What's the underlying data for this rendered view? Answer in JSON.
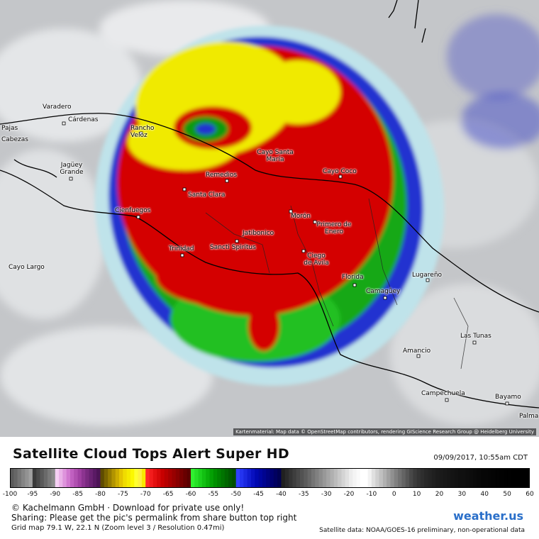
{
  "map": {
    "attribution": "Kartenmaterial: Map data © OpenStreetMap contributors, rendering GIScience Research Group @ Heidelberg University",
    "cities": [
      {
        "name": "Varadero",
        "id": "varadero"
      },
      {
        "name": "Cárdenas",
        "id": "cardenas"
      },
      {
        "name": "Rancho Veloz",
        "id": "rancho-veloz"
      },
      {
        "name": "Cayo Santa María",
        "id": "cayo-santa-maria"
      },
      {
        "name": "Remedios",
        "id": "remedios"
      },
      {
        "name": "Cayo Coco",
        "id": "cayo-coco"
      },
      {
        "name": "Santa Clara",
        "id": "santa-clara"
      },
      {
        "name": "Jagüey Grande",
        "id": "jaguey-grande"
      },
      {
        "name": "Cienfuegos",
        "id": "cienfuegos"
      },
      {
        "name": "Morón",
        "id": "moron"
      },
      {
        "name": "Primero de Enero",
        "id": "primero-de-enero"
      },
      {
        "name": "Jatibonico",
        "id": "jatibonico"
      },
      {
        "name": "Trinidad",
        "id": "trinidad"
      },
      {
        "name": "Sancti Spiritus",
        "id": "sancti-spiritus"
      },
      {
        "name": "Ciego de Avila",
        "id": "ciego-de-avila"
      },
      {
        "name": "Cayo Largo",
        "id": "cayo-largo"
      },
      {
        "name": "Florida",
        "id": "florida"
      },
      {
        "name": "Lugareño",
        "id": "lugareno"
      },
      {
        "name": "Camagüey",
        "id": "camaguey"
      },
      {
        "name": "Las Tunas",
        "id": "las-tunas"
      },
      {
        "name": "Amancio",
        "id": "amancio"
      },
      {
        "name": "Bayamo",
        "id": "bayamo"
      },
      {
        "name": "Campechuela",
        "id": "campechuela"
      },
      {
        "name": "Palma",
        "id": "palma"
      },
      {
        "name": "Cabezas",
        "id": "cabezas"
      },
      {
        "name": "Pajas",
        "id": "pajas"
      }
    ]
  },
  "header": {
    "title": "Satellite Cloud Tops Alert Super HD",
    "datetime": "09/09/2017, 10:55am CDT"
  },
  "scale": {
    "ticks": [
      "-100",
      "-95",
      "-90",
      "-85",
      "-80",
      "-75",
      "-70",
      "-65",
      "-60",
      "-55",
      "-50",
      "-45",
      "-40",
      "-35",
      "-30",
      "-20",
      "-10",
      "0",
      "10",
      "20",
      "30",
      "40",
      "50",
      "60"
    ],
    "colors": {
      "gray_dark": "#1a1a1a",
      "pink": "#e88ce6",
      "gold": "#c8a000",
      "yellow": "#f0f000",
      "red": "#e00000",
      "green": "#10c010",
      "blue": "#1020e0",
      "light": "#e8e8e8"
    }
  },
  "footer": {
    "line1": "© Kachelmann GmbH · Download for private use only!",
    "line2": "Sharing: Please get the pic's permalink from share button top right",
    "line3": "Grid map 79.1 W, 22.1 N (Zoom level 3 / Resolution 0.47mi)",
    "logo": "weather.us",
    "credit": "Satellite data: NOAA/GOES-16 preliminary, non-operational data"
  }
}
